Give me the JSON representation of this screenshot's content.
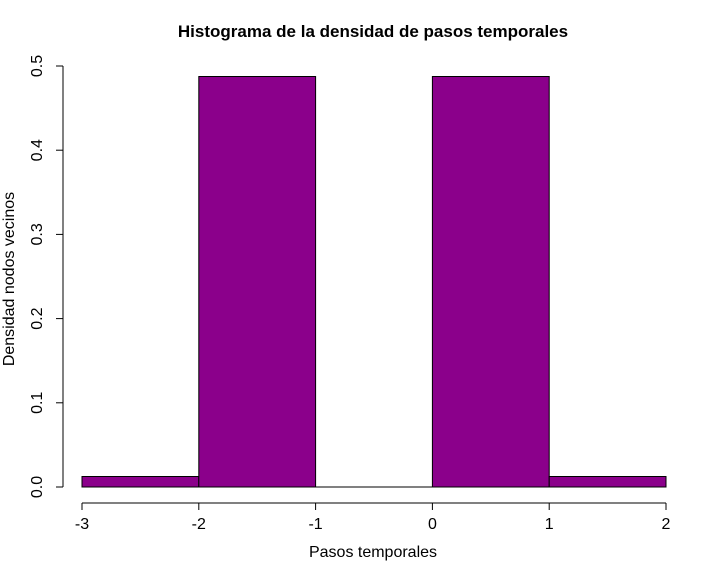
{
  "chart_data": {
    "type": "bar",
    "title": "Histograma de la densidad de pasos temporales",
    "xlabel": "Pasos temporales",
    "ylabel": "Densidad nodos vecinos",
    "bins": [
      {
        "from": -3,
        "to": -2,
        "value": 0.0125
      },
      {
        "from": -2,
        "to": -1,
        "value": 0.4875
      },
      {
        "from": -1,
        "to": 0,
        "value": 0.0
      },
      {
        "from": 0,
        "to": 1,
        "value": 0.4875
      },
      {
        "from": 1,
        "to": 2,
        "value": 0.0125
      }
    ],
    "xlim": [
      -3,
      2
    ],
    "ylim": [
      0,
      0.5
    ],
    "x_ticks": [
      "-3",
      "-2",
      "-1",
      "0",
      "1",
      "2"
    ],
    "x_tick_values": [
      -3,
      -2,
      -1,
      0,
      1,
      2
    ],
    "y_ticks": [
      "0.0",
      "0.1",
      "0.2",
      "0.3",
      "0.4",
      "0.5"
    ],
    "y_tick_values": [
      0,
      0.1,
      0.2,
      0.3,
      0.4,
      0.5
    ],
    "bar_color": "#8B008B",
    "grid": false,
    "legend": "none"
  }
}
